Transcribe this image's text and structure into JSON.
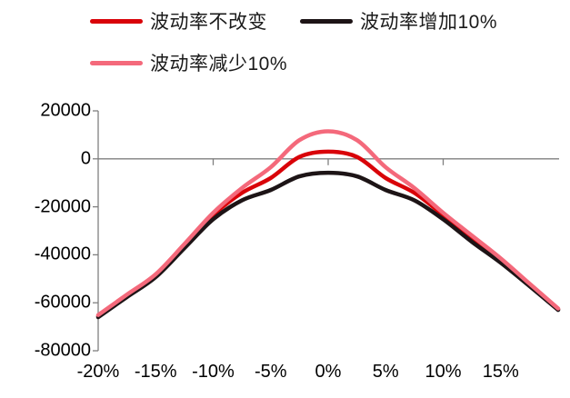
{
  "legend": {
    "items": [
      {
        "label": "波动率不改变",
        "color": "#d90309"
      },
      {
        "label": "波动率增加10%",
        "color": "#1d1416"
      },
      {
        "label": "波动率减少10%",
        "color": "#f4697b"
      }
    ]
  },
  "chart_data": {
    "type": "line",
    "title": "",
    "xlabel": "",
    "ylabel": "",
    "x_unit": "%",
    "x": [
      -20,
      -17.5,
      -15,
      -12.5,
      -10,
      -7.5,
      -5,
      -2.5,
      0,
      2.5,
      5,
      7.5,
      10,
      12.5,
      15,
      17.5,
      20
    ],
    "series": [
      {
        "name": "波动率不改变",
        "color": "#d90309",
        "values": [
          -65600,
          -57100,
          -48600,
          -36300,
          -23400,
          -14200,
          -8000,
          800,
          3000,
          800,
          -8000,
          -14200,
          -23400,
          -32800,
          -42200,
          -52500,
          -62700
        ]
      },
      {
        "name": "波动率增加10%",
        "color": "#1d1416",
        "values": [
          -66000,
          -57600,
          -49300,
          -37200,
          -25200,
          -17300,
          -13000,
          -7300,
          -5800,
          -7300,
          -13000,
          -17300,
          -25200,
          -34600,
          -43300,
          -53000,
          -63000
        ]
      },
      {
        "name": "波动率减少10%",
        "color": "#f4697b",
        "values": [
          -65100,
          -56600,
          -48100,
          -35500,
          -22500,
          -12200,
          -3500,
          7800,
          11500,
          7800,
          -3500,
          -12200,
          -22500,
          -32000,
          -41500,
          -52000,
          -62400
        ]
      }
    ],
    "draw_order": [
      0,
      1,
      2
    ],
    "xlim": [
      -20,
      20
    ],
    "ylim": [
      -80000,
      20000
    ],
    "y_ticks": [
      20000,
      0,
      -20000,
      -40000,
      -60000,
      -80000
    ],
    "y_tick_labels": [
      "20000",
      "0",
      "-20000",
      "-40000",
      "-60000",
      "-80000"
    ],
    "x_tick_label_values": [
      -20,
      -15,
      -10,
      -5,
      0,
      5,
      10,
      15
    ],
    "x_tick_labels": [
      "-20%",
      "-15%",
      "-10%",
      "-5%",
      "0%",
      "5%",
      "10%",
      "15%"
    ],
    "x_axis_tick_mark_values": [
      -10,
      0,
      10
    ],
    "grid": false,
    "legend_position": "top-left",
    "axis_color": "#7f7f7f",
    "zero_line": true
  }
}
